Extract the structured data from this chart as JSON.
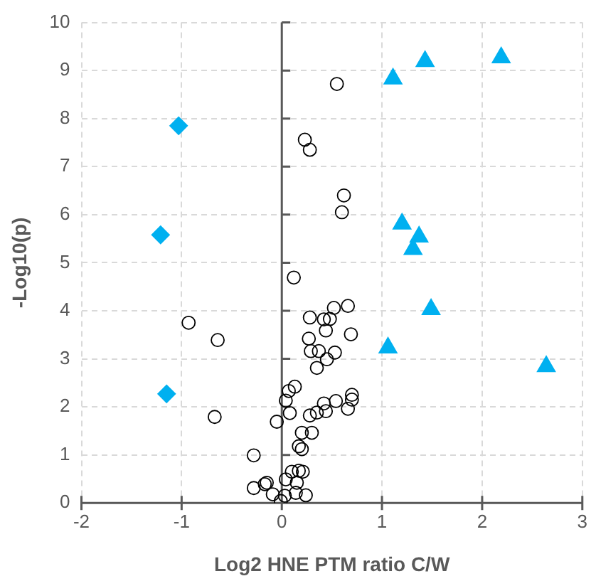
{
  "chart_data": {
    "type": "scatter",
    "xlabel": "Log2 HNE PTM ratio C/W",
    "ylabel": "-Log10(p)",
    "xlim": [
      -2,
      3
    ],
    "xticks": [
      -2,
      -1,
      0,
      1,
      2,
      3
    ],
    "ylim": [
      0,
      10
    ],
    "yticks": [
      0,
      1,
      2,
      3,
      4,
      5,
      6,
      7,
      8,
      9,
      10
    ],
    "grid": true,
    "legend": false,
    "series": [
      {
        "color": "#000000",
        "marker": "circle",
        "x": [
          0.55,
          0.23,
          0.28,
          0.62,
          0.6,
          0.12,
          -0.93,
          -0.64,
          -0.67,
          -0.28,
          0.28,
          0.52,
          0.66,
          0.42,
          0.48,
          0.44,
          0.69,
          0.27,
          0.29,
          0.37,
          0.53,
          0.45,
          0.35,
          0.13,
          0.07,
          0.04,
          0.08,
          -0.05,
          0.28,
          0.35,
          0.44,
          0.42,
          0.54,
          0.7,
          0.7,
          0.66,
          0.2,
          0.3,
          0.17,
          0.2,
          0.1,
          0.17,
          0.21,
          0.04,
          0.15,
          -0.28,
          -0.17,
          -0.15,
          -0.09,
          0.03,
          0.14,
          0.24,
          -0.01
        ],
        "values": [
          8.72,
          7.56,
          7.35,
          6.4,
          6.05,
          4.69,
          3.75,
          3.39,
          1.79,
          0.99,
          3.86,
          4.06,
          4.1,
          3.82,
          3.83,
          3.59,
          3.51,
          3.42,
          3.16,
          3.16,
          3.13,
          2.99,
          2.81,
          2.42,
          2.33,
          2.13,
          1.87,
          1.69,
          1.82,
          1.88,
          1.91,
          2.07,
          2.12,
          2.25,
          2.15,
          1.96,
          1.46,
          1.46,
          1.18,
          1.12,
          0.65,
          0.67,
          0.65,
          0.49,
          0.42,
          0.31,
          0.39,
          0.42,
          0.18,
          0.15,
          0.21,
          0.16,
          0.04
        ]
      },
      {
        "color": "#00b0f0",
        "marker": "diamond",
        "x": [
          -1.03,
          -1.21,
          -1.15
        ],
        "values": [
          7.85,
          5.58,
          2.27
        ]
      },
      {
        "color": "#00b0f0",
        "marker": "triangle",
        "x": [
          1.43,
          2.19,
          1.11,
          1.2,
          1.37,
          1.31,
          1.49,
          1.06,
          2.64
        ],
        "values": [
          9.19,
          9.27,
          8.83,
          5.81,
          5.54,
          5.28,
          4.03,
          3.23,
          2.84
        ]
      }
    ]
  }
}
